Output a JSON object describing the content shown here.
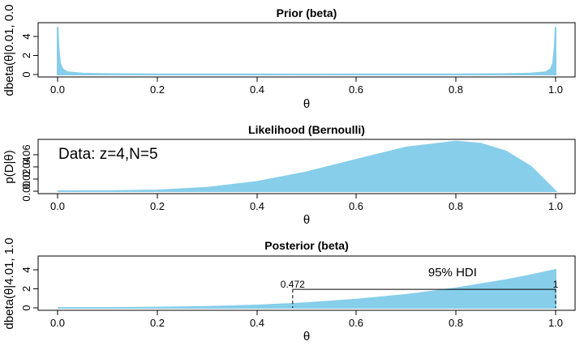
{
  "chart_data": [
    {
      "type": "area",
      "title": "Prior (beta)",
      "xlabel": "θ",
      "ylabel": "dbeta(θ|0.01, 0.0",
      "xlim": [
        0,
        1
      ],
      "ylim": [
        0,
        5.3
      ],
      "xticks": [
        "0.0",
        "0.2",
        "0.4",
        "0.6",
        "0.8",
        "1.0"
      ],
      "yticks": [
        "0",
        "2",
        "4"
      ],
      "series": [
        {
          "x": [
            0.0,
            0.002,
            0.005,
            0.01,
            0.02,
            0.05,
            0.1,
            0.2,
            0.3,
            0.4,
            0.5,
            0.6,
            0.7,
            0.8,
            0.9,
            0.95,
            0.98,
            0.99,
            0.995,
            0.998,
            1.0
          ],
          "y": [
            5.0,
            2.9,
            1.2,
            0.55,
            0.25,
            0.1,
            0.05,
            0.025,
            0.017,
            0.013,
            0.01,
            0.013,
            0.017,
            0.025,
            0.05,
            0.1,
            0.25,
            0.55,
            1.2,
            2.9,
            5.0
          ]
        }
      ],
      "color": "#87CEEB"
    },
    {
      "type": "area",
      "title": "Likelihood (Bernoulli)",
      "xlabel": "θ",
      "ylabel": "p(D|θ)",
      "xlim": [
        0,
        1
      ],
      "ylim": [
        0,
        0.087
      ],
      "xticks": [
        "0.0",
        "0.2",
        "0.4",
        "0.6",
        "0.8",
        "1.0"
      ],
      "yticks": [
        "0.00",
        "0.02",
        "0.04",
        "0.06"
      ],
      "annotation": "Data: z=4,N=5",
      "series": [
        {
          "x": [
            0.0,
            0.1,
            0.2,
            0.3,
            0.4,
            0.5,
            0.6,
            0.7,
            0.8,
            0.85,
            0.9,
            0.95,
            1.0
          ],
          "y": [
            0.0,
            9e-05,
            0.00128,
            0.00567,
            0.01536,
            0.03125,
            0.05184,
            0.07203,
            0.08192,
            0.0783,
            0.06561,
            0.04073,
            0.0
          ]
        }
      ],
      "color": "#87CEEB"
    },
    {
      "type": "area",
      "title": "Posterior (beta)",
      "xlabel": "θ",
      "ylabel": "dbeta(θ|4.01, 1.0",
      "xlim": [
        0,
        1
      ],
      "ylim": [
        0,
        5.3
      ],
      "xticks": [
        "0.0",
        "0.2",
        "0.4",
        "0.6",
        "0.8",
        "1.0"
      ],
      "yticks": [
        "0",
        "2",
        "4"
      ],
      "series": [
        {
          "x": [
            0.0,
            0.1,
            0.2,
            0.3,
            0.4,
            0.5,
            0.6,
            0.7,
            0.8,
            0.9,
            0.95,
            0.99,
            1.0
          ],
          "y": [
            0.0,
            0.004,
            0.032,
            0.108,
            0.256,
            0.5,
            0.864,
            1.372,
            2.048,
            2.916,
            3.43,
            3.88,
            4.0
          ]
        }
      ],
      "color": "#87CEEB",
      "hdi": {
        "low": 0.472,
        "high": 1.0,
        "y": 1.95,
        "low_label": "0.472",
        "high_label": "1",
        "label": "95% HDI"
      }
    }
  ]
}
